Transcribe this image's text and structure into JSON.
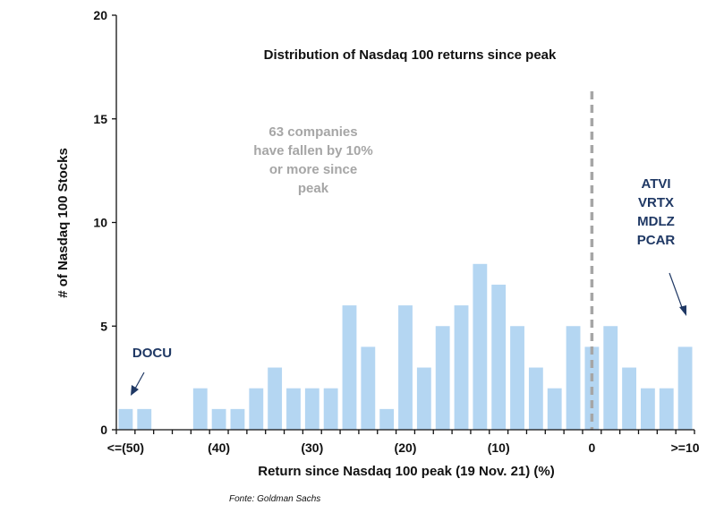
{
  "chart_data": {
    "type": "bar",
    "title": "Distribution of Nasdaq 100 returns since peak",
    "xlabel": "Return since Nasdaq 100 peak (19 Nov. 21) (%)",
    "ylabel": "# of Nasdaq 100 Stocks",
    "ylim": [
      0,
      20
    ],
    "yticks": [
      0,
      5,
      10,
      15,
      20
    ],
    "xtick_labels": [
      {
        "label": "<=(50)",
        "bin": 0
      },
      {
        "label": "(40)",
        "bin": 5
      },
      {
        "label": "(30)",
        "bin": 10
      },
      {
        "label": "(20)",
        "bin": 15
      },
      {
        "label": "(10)",
        "bin": 20
      },
      {
        "label": "0",
        "bin": 25
      },
      {
        "label": ">=10",
        "bin": 30
      }
    ],
    "bin_width_pct": 2,
    "values": [
      1,
      1,
      0,
      0,
      2,
      1,
      1,
      2,
      3,
      2,
      2,
      2,
      6,
      4,
      1,
      6,
      3,
      5,
      6,
      8,
      7,
      5,
      3,
      2,
      5,
      4,
      5,
      3,
      2,
      2,
      4
    ],
    "bar_color": "#b4d6f2",
    "peak_line": {
      "x_bin": 25,
      "color": "#a6a6a6",
      "style": "dashed"
    },
    "annotations": {
      "fallen": [
        "63 companies",
        "have fallen by 10%",
        "or more since",
        "peak"
      ],
      "left_ticker": [
        "DOCU"
      ],
      "right_tickers": [
        "ATVI",
        "VRTX",
        "MDLZ",
        "PCAR"
      ]
    },
    "source": "Fonte: Goldman Sachs",
    "grid": false,
    "legend": "none"
  }
}
